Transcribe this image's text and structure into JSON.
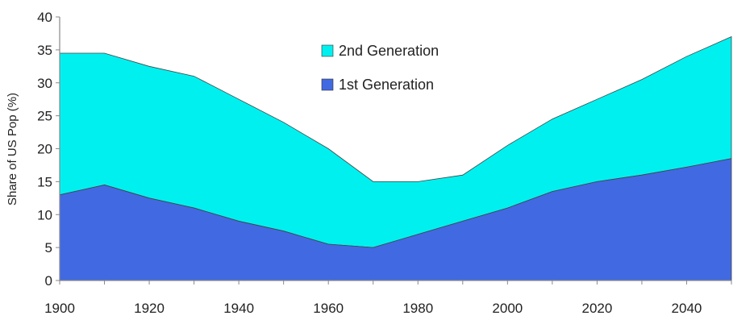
{
  "chart_data": {
    "type": "area",
    "stacked": true,
    "ylabel": "Share of US Pop (%)",
    "xlim": [
      1900,
      2050
    ],
    "ylim": [
      0,
      40
    ],
    "x_ticks": [
      1900,
      1920,
      1940,
      1960,
      1980,
      2000,
      2020,
      2040
    ],
    "y_ticks": [
      0,
      5,
      10,
      15,
      20,
      25,
      30,
      35,
      40
    ],
    "x": [
      1900,
      1910,
      1920,
      1930,
      1940,
      1950,
      1960,
      1970,
      1980,
      1990,
      2000,
      2010,
      2020,
      2030,
      2040,
      2050
    ],
    "series": [
      {
        "name": "1st Generation",
        "color": "#4169e1",
        "values": [
          13,
          14.5,
          12.5,
          11,
          9,
          7.5,
          5.5,
          5,
          7,
          9,
          11,
          13.5,
          15,
          16,
          17.2,
          18.5
        ]
      },
      {
        "name": "2nd Generation",
        "color": "#00f0f0",
        "values": [
          21.5,
          20,
          20,
          20,
          18.5,
          16.5,
          14.5,
          10,
          8,
          7,
          9.5,
          11,
          12.5,
          14.5,
          16.8,
          18.5
        ]
      }
    ],
    "legend": {
      "position": "top-center",
      "entries": [
        "2nd Generation",
        "1st Generation"
      ]
    },
    "grid": false
  }
}
